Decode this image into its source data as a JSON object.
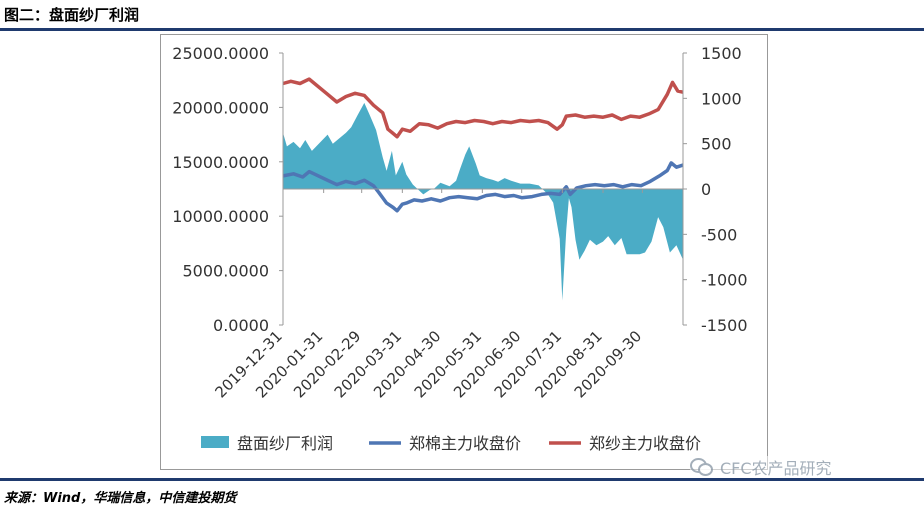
{
  "header": {
    "title": "图二：盘面纱厂利润"
  },
  "footer": {
    "source": "来源：Wind，华瑞信息，中信建投期货"
  },
  "watermark": {
    "text": "CFC农产品研究",
    "icon": "wechat-icon"
  },
  "colors": {
    "profit": "#4bacc6",
    "cotton": "#4f76b4",
    "yarn": "#c0504d",
    "rule": "#1f3a6e"
  },
  "chart_data": {
    "type": "line",
    "left_axis": {
      "ylim": [
        0,
        25000
      ],
      "ticks": [
        "0.0000",
        "5000.0000",
        "10000.0000",
        "15000.0000",
        "20000.0000",
        "25000.0000"
      ],
      "tick_values": [
        0,
        5000,
        10000,
        15000,
        20000,
        25000
      ]
    },
    "right_axis": {
      "ylim": [
        -1500,
        1500
      ],
      "ticks": [
        "-1500",
        "-1000",
        "-500",
        "0",
        "500",
        "1000",
        "1500"
      ],
      "tick_values": [
        -1500,
        -1000,
        -500,
        0,
        500,
        1000,
        1500
      ]
    },
    "x_ticks": [
      "2019-12-31",
      "2020-01-31",
      "2020-02-29",
      "2020-03-31",
      "2020-04-30",
      "2020-05-31",
      "2020-06-30",
      "2020-07-31",
      "2020-08-31",
      "2020-09-30"
    ],
    "x_range": [
      "2019-12-31",
      "2020-10-31"
    ],
    "legend": [
      "盘面纱厂利润",
      "郑棉主力收盘价",
      "郑纱主力收盘价"
    ],
    "series": [
      {
        "name": "盘面纱厂利润",
        "kind": "area",
        "axis": "right",
        "points": [
          [
            "2019-12-31",
            620
          ],
          [
            "2020-01-03",
            470
          ],
          [
            "2020-01-08",
            520
          ],
          [
            "2020-01-13",
            450
          ],
          [
            "2020-01-17",
            540
          ],
          [
            "2020-01-22",
            420
          ],
          [
            "2020-02-03",
            600
          ],
          [
            "2020-02-07",
            500
          ],
          [
            "2020-02-12",
            560
          ],
          [
            "2020-02-17",
            620
          ],
          [
            "2020-02-21",
            680
          ],
          [
            "2020-02-26",
            820
          ],
          [
            "2020-03-02",
            950
          ],
          [
            "2020-03-06",
            820
          ],
          [
            "2020-03-11",
            650
          ],
          [
            "2020-03-16",
            350
          ],
          [
            "2020-03-19",
            200
          ],
          [
            "2020-03-23",
            420
          ],
          [
            "2020-03-26",
            150
          ],
          [
            "2020-03-31",
            300
          ],
          [
            "2020-04-03",
            160
          ],
          [
            "2020-04-08",
            50
          ],
          [
            "2020-04-13",
            -20
          ],
          [
            "2020-04-16",
            -60
          ],
          [
            "2020-04-21",
            -10
          ],
          [
            "2020-04-24",
            0
          ],
          [
            "2020-04-29",
            70
          ],
          [
            "2020-05-06",
            30
          ],
          [
            "2020-05-11",
            90
          ],
          [
            "2020-05-14",
            220
          ],
          [
            "2020-05-18",
            380
          ],
          [
            "2020-05-21",
            470
          ],
          [
            "2020-05-26",
            280
          ],
          [
            "2020-05-29",
            150
          ],
          [
            "2020-06-03",
            120
          ],
          [
            "2020-06-08",
            100
          ],
          [
            "2020-06-12",
            80
          ],
          [
            "2020-06-17",
            120
          ],
          [
            "2020-06-22",
            90
          ],
          [
            "2020-06-29",
            60
          ],
          [
            "2020-07-06",
            60
          ],
          [
            "2020-07-13",
            40
          ],
          [
            "2020-07-20",
            -60
          ],
          [
            "2020-07-24",
            -150
          ],
          [
            "2020-07-29",
            -550
          ],
          [
            "2020-07-31",
            -1230
          ],
          [
            "2020-08-03",
            -450
          ],
          [
            "2020-08-05",
            -100
          ],
          [
            "2020-08-07",
            -200
          ],
          [
            "2020-08-10",
            -560
          ],
          [
            "2020-08-13",
            -780
          ],
          [
            "2020-08-17",
            -680
          ],
          [
            "2020-08-21",
            -560
          ],
          [
            "2020-08-26",
            -620
          ],
          [
            "2020-08-31",
            -580
          ],
          [
            "2020-09-04",
            -520
          ],
          [
            "2020-09-09",
            -620
          ],
          [
            "2020-09-14",
            -540
          ],
          [
            "2020-09-18",
            -720
          ],
          [
            "2020-09-23",
            -720
          ],
          [
            "2020-09-28",
            -720
          ],
          [
            "2020-10-02",
            -700
          ],
          [
            "2020-10-07",
            -580
          ],
          [
            "2020-10-12",
            -310
          ],
          [
            "2020-10-16",
            -420
          ],
          [
            "2020-10-21",
            -700
          ],
          [
            "2020-10-26",
            -620
          ],
          [
            "2020-10-31",
            -780
          ]
        ]
      },
      {
        "name": "郑棉主力收盘价",
        "kind": "line",
        "axis": "left",
        "points": [
          [
            "2019-12-31",
            13700
          ],
          [
            "2020-01-08",
            13900
          ],
          [
            "2020-01-15",
            13600
          ],
          [
            "2020-01-20",
            14100
          ],
          [
            "2020-02-03",
            13300
          ],
          [
            "2020-02-10",
            12900
          ],
          [
            "2020-02-17",
            13200
          ],
          [
            "2020-02-24",
            13000
          ],
          [
            "2020-03-02",
            13300
          ],
          [
            "2020-03-09",
            12800
          ],
          [
            "2020-03-13",
            12200
          ],
          [
            "2020-03-19",
            11200
          ],
          [
            "2020-03-24",
            10800
          ],
          [
            "2020-03-27",
            10500
          ],
          [
            "2020-03-31",
            11100
          ],
          [
            "2020-04-03",
            11200
          ],
          [
            "2020-04-09",
            11500
          ],
          [
            "2020-04-15",
            11400
          ],
          [
            "2020-04-22",
            11600
          ],
          [
            "2020-04-29",
            11400
          ],
          [
            "2020-05-06",
            11700
          ],
          [
            "2020-05-13",
            11800
          ],
          [
            "2020-05-20",
            11700
          ],
          [
            "2020-05-27",
            11600
          ],
          [
            "2020-06-03",
            11900
          ],
          [
            "2020-06-10",
            12000
          ],
          [
            "2020-06-17",
            11800
          ],
          [
            "2020-06-24",
            11900
          ],
          [
            "2020-06-30",
            11700
          ],
          [
            "2020-07-08",
            11800
          ],
          [
            "2020-07-15",
            12000
          ],
          [
            "2020-07-22",
            12100
          ],
          [
            "2020-07-29",
            12000
          ],
          [
            "2020-08-03",
            12700
          ],
          [
            "2020-08-06",
            12000
          ],
          [
            "2020-08-11",
            12600
          ],
          [
            "2020-08-18",
            12800
          ],
          [
            "2020-08-25",
            12900
          ],
          [
            "2020-09-01",
            12800
          ],
          [
            "2020-09-08",
            12900
          ],
          [
            "2020-09-15",
            12700
          ],
          [
            "2020-09-22",
            12900
          ],
          [
            "2020-09-29",
            12800
          ],
          [
            "2020-10-06",
            13200
          ],
          [
            "2020-10-13",
            13700
          ],
          [
            "2020-10-19",
            14200
          ],
          [
            "2020-10-22",
            14900
          ],
          [
            "2020-10-26",
            14500
          ],
          [
            "2020-10-31",
            14700
          ]
        ]
      },
      {
        "name": "郑纱主力收盘价",
        "kind": "line",
        "axis": "left",
        "points": [
          [
            "2019-12-31",
            22200
          ],
          [
            "2020-01-06",
            22400
          ],
          [
            "2020-01-13",
            22200
          ],
          [
            "2020-01-20",
            22600
          ],
          [
            "2020-02-03",
            21200
          ],
          [
            "2020-02-10",
            20500
          ],
          [
            "2020-02-17",
            21000
          ],
          [
            "2020-02-24",
            21300
          ],
          [
            "2020-03-02",
            21100
          ],
          [
            "2020-03-09",
            20200
          ],
          [
            "2020-03-16",
            19500
          ],
          [
            "2020-03-20",
            18000
          ],
          [
            "2020-03-24",
            17600
          ],
          [
            "2020-03-27",
            17300
          ],
          [
            "2020-03-31",
            18000
          ],
          [
            "2020-04-06",
            17800
          ],
          [
            "2020-04-13",
            18500
          ],
          [
            "2020-04-20",
            18400
          ],
          [
            "2020-04-27",
            18100
          ],
          [
            "2020-05-04",
            18500
          ],
          [
            "2020-05-11",
            18700
          ],
          [
            "2020-05-18",
            18600
          ],
          [
            "2020-05-25",
            18800
          ],
          [
            "2020-06-01",
            18700
          ],
          [
            "2020-06-08",
            18500
          ],
          [
            "2020-06-15",
            18700
          ],
          [
            "2020-06-22",
            18600
          ],
          [
            "2020-06-29",
            18800
          ],
          [
            "2020-07-06",
            18700
          ],
          [
            "2020-07-13",
            18800
          ],
          [
            "2020-07-20",
            18600
          ],
          [
            "2020-07-27",
            18000
          ],
          [
            "2020-07-31",
            18400
          ],
          [
            "2020-08-03",
            19200
          ],
          [
            "2020-08-10",
            19300
          ],
          [
            "2020-08-17",
            19100
          ],
          [
            "2020-08-24",
            19200
          ],
          [
            "2020-08-31",
            19100
          ],
          [
            "2020-09-07",
            19300
          ],
          [
            "2020-09-14",
            18900
          ],
          [
            "2020-09-21",
            19200
          ],
          [
            "2020-09-28",
            19100
          ],
          [
            "2020-10-05",
            19400
          ],
          [
            "2020-10-12",
            19800
          ],
          [
            "2020-10-19",
            21200
          ],
          [
            "2020-10-23",
            22300
          ],
          [
            "2020-10-27",
            21500
          ],
          [
            "2020-10-31",
            21400
          ]
        ]
      }
    ]
  }
}
